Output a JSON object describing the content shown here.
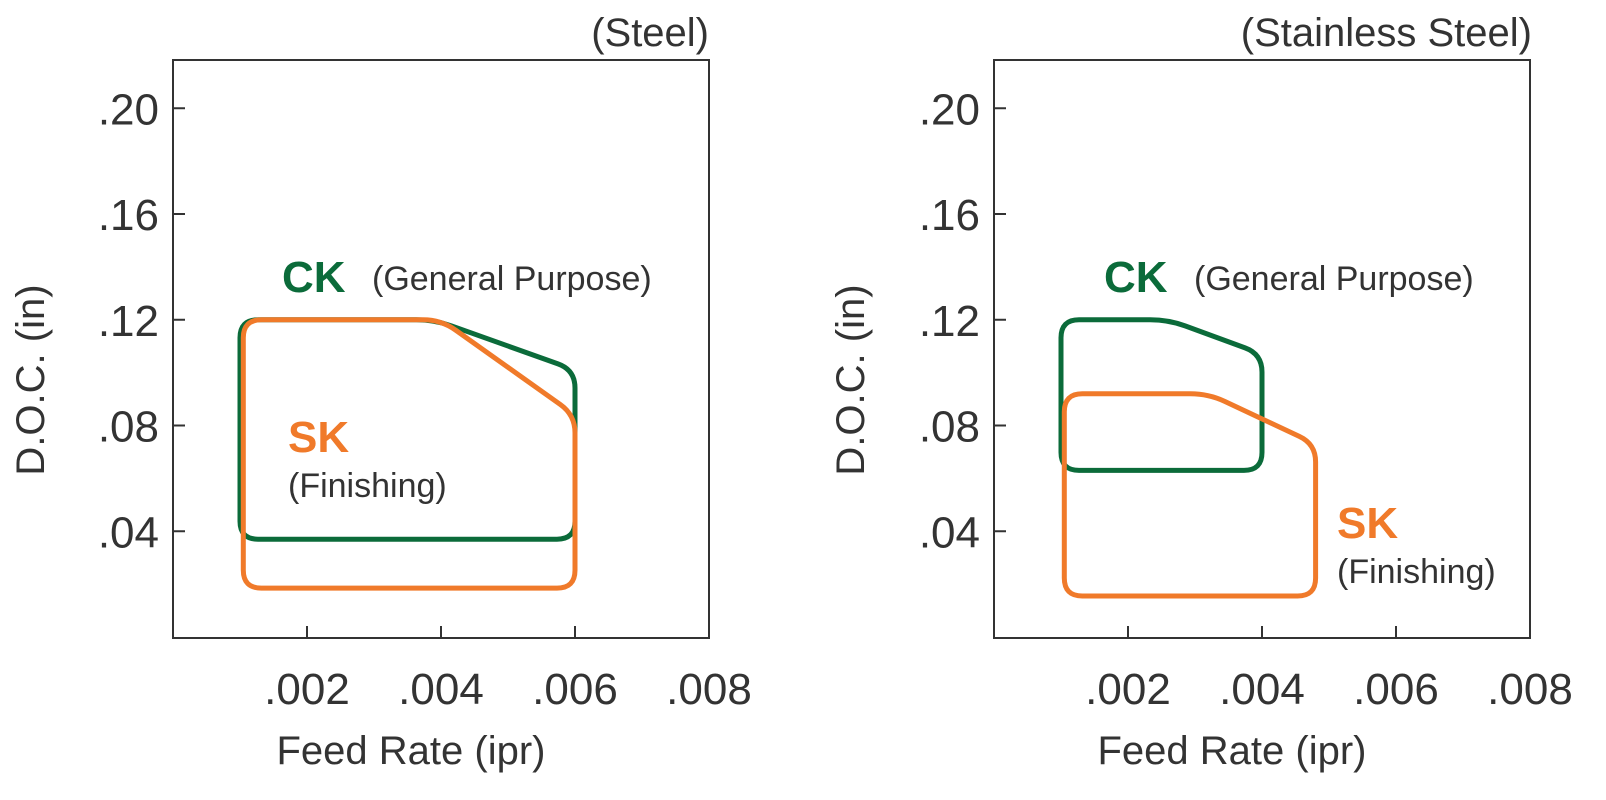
{
  "chart_data": [
    {
      "type": "area",
      "title": "(Steel)",
      "xlabel": "Feed Rate (ipr)",
      "ylabel": "D.O.C. (in)",
      "xlim": [
        0,
        0.008
      ],
      "ylim": [
        0,
        0.22
      ],
      "xticks": [
        0.002,
        0.004,
        0.006,
        0.008
      ],
      "xtick_labels": [
        ".002",
        ".004",
        ".006",
        ".008"
      ],
      "yticks": [
        0.04,
        0.08,
        0.12,
        0.16,
        0.2
      ],
      "ytick_labels": [
        ".04",
        ".08",
        ".12",
        ".16",
        ".20"
      ],
      "grid": false,
      "series": [
        {
          "name": "CK",
          "description": "(General Purpose)",
          "color": "#0b6b3a",
          "polygon": [
            [
              0.001,
              0.12
            ],
            [
              0.0039,
              0.12
            ],
            [
              0.006,
              0.101
            ],
            [
              0.006,
              0.037
            ],
            [
              0.001,
              0.037
            ]
          ]
        },
        {
          "name": "SK",
          "description": "(Finishing)",
          "color": "#f07a2a",
          "polygon": [
            [
              0.00105,
              0.12
            ],
            [
              0.004,
              0.12
            ],
            [
              0.006,
              0.084
            ],
            [
              0.006,
              0.0185
            ],
            [
              0.00105,
              0.0185
            ]
          ]
        }
      ]
    },
    {
      "type": "area",
      "title": "(Stainless Steel)",
      "xlabel": "Feed Rate (ipr)",
      "ylabel": "D.O.C. (in)",
      "xlim": [
        0,
        0.008
      ],
      "ylim": [
        0,
        0.22
      ],
      "xticks": [
        0.002,
        0.004,
        0.006,
        0.008
      ],
      "xtick_labels": [
        ".002",
        ".004",
        ".006",
        ".008"
      ],
      "yticks": [
        0.04,
        0.08,
        0.12,
        0.16,
        0.2
      ],
      "ytick_labels": [
        ".04",
        ".08",
        ".12",
        ".16",
        ".20"
      ],
      "grid": false,
      "series": [
        {
          "name": "CK",
          "description": "(General Purpose)",
          "color": "#0b6b3a",
          "polygon": [
            [
              0.001,
              0.12
            ],
            [
              0.0026,
              0.12
            ],
            [
              0.004,
              0.107
            ],
            [
              0.004,
              0.063
            ],
            [
              0.001,
              0.063
            ]
          ]
        },
        {
          "name": "SK",
          "description": "(Finishing)",
          "color": "#f07a2a",
          "polygon": [
            [
              0.00105,
              0.092
            ],
            [
              0.0032,
              0.092
            ],
            [
              0.0048,
              0.073
            ],
            [
              0.0048,
              0.0155
            ],
            [
              0.00105,
              0.0155
            ]
          ]
        }
      ]
    }
  ]
}
